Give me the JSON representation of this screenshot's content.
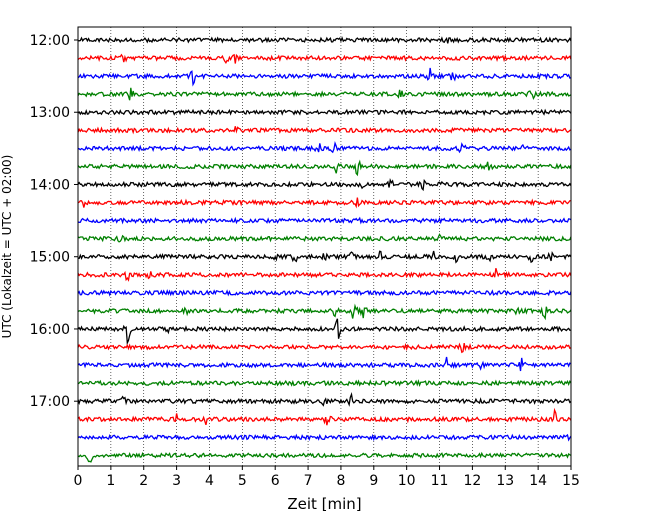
{
  "chart_data": {
    "type": "line",
    "xlabel": "Zeit  [min]",
    "ylabel": "UTC (Lokalzeit = UTC + 02:00)",
    "xlim": [
      0,
      15
    ],
    "x_ticks": [
      "0",
      "1",
      "2",
      "3",
      "4",
      "5",
      "6",
      "7",
      "8",
      "9",
      "10",
      "11",
      "12",
      "13",
      "14",
      "15"
    ],
    "y_ticks": [
      "12:00",
      "13:00",
      "14:00",
      "15:00",
      "16:00",
      "17:00"
    ],
    "grid": {
      "x": true,
      "y": false,
      "style": "dotted"
    },
    "trace_colors": [
      "#000000",
      "#ff0000",
      "#0000ff",
      "#008000"
    ],
    "trace_interval_min": 15,
    "traces": [
      {
        "start": "12:00",
        "events": [
          [
            7.2,
            1.0
          ],
          [
            11.2,
            0.8
          ]
        ]
      },
      {
        "start": "12:15",
        "events": [
          [
            1.4,
            1.8
          ],
          [
            4.5,
            1.5
          ],
          [
            4.8,
            1.2
          ]
        ]
      },
      {
        "start": "12:30",
        "events": [
          [
            3.5,
            2.5
          ],
          [
            10.7,
            2.3
          ],
          [
            11.4,
            1.3
          ]
        ]
      },
      {
        "start": "12:45",
        "events": [
          [
            1.6,
            1.6
          ],
          [
            9.8,
            1.2
          ],
          [
            13.8,
            2.8
          ]
        ]
      },
      {
        "start": "13:00",
        "events": [
          [
            3.0,
            1.0
          ]
        ]
      },
      {
        "start": "13:15",
        "events": [
          [
            4.8,
            0.8
          ]
        ]
      },
      {
        "start": "13:30",
        "events": [
          [
            7.3,
            2.0
          ],
          [
            7.8,
            1.6
          ],
          [
            11.7,
            3.0
          ],
          [
            13.5,
            1.2
          ]
        ]
      },
      {
        "start": "13:45",
        "events": [
          [
            7.9,
            2.8
          ],
          [
            8.5,
            2.5
          ],
          [
            12.5,
            1.3
          ]
        ]
      },
      {
        "start": "14:00",
        "events": [
          [
            8.7,
            1.2
          ],
          [
            9.5,
            1.6
          ],
          [
            10.5,
            1.5
          ],
          [
            11.1,
            1.3
          ]
        ]
      },
      {
        "start": "14:15",
        "events": [
          [
            0.2,
            1.6
          ],
          [
            8.5,
            1.3
          ]
        ]
      },
      {
        "start": "14:30",
        "events": [
          [
            8.6,
            0.7
          ]
        ]
      },
      {
        "start": "14:45",
        "events": [
          [
            1.3,
            0.8
          ],
          [
            11.0,
            1.2
          ]
        ]
      },
      {
        "start": "15:00",
        "events": [
          [
            6.0,
            1.2
          ],
          [
            6.6,
            1.6
          ],
          [
            7.5,
            1.6
          ],
          [
            8.3,
            1.3
          ],
          [
            9.2,
            1.3
          ],
          [
            10.8,
            1.5
          ],
          [
            11.5,
            1.2
          ],
          [
            12.5,
            1.3
          ],
          [
            13.8,
            1.3
          ],
          [
            14.4,
            1.2
          ]
        ]
      },
      {
        "start": "15:15",
        "events": [
          [
            1.5,
            1.6
          ],
          [
            2.2,
            1.2
          ],
          [
            12.7,
            1.7
          ]
        ]
      },
      {
        "start": "15:30",
        "events": []
      },
      {
        "start": "15:45",
        "events": [
          [
            3.3,
            1.0
          ],
          [
            7.8,
            2.6
          ],
          [
            8.4,
            3.2
          ],
          [
            8.7,
            2.5
          ],
          [
            13.4,
            2.5
          ],
          [
            14.2,
            2.2
          ]
        ]
      },
      {
        "start": "16:00",
        "events": [
          [
            1.5,
            4.5
          ],
          [
            2.7,
            1.2
          ],
          [
            7.9,
            3.6
          ]
        ]
      },
      {
        "start": "16:15",
        "events": [
          [
            11.7,
            1.3
          ]
        ]
      },
      {
        "start": "16:30",
        "events": [
          [
            11.2,
            2.2
          ],
          [
            12.3,
            1.3
          ],
          [
            13.5,
            2.0
          ]
        ]
      },
      {
        "start": "16:45",
        "events": [
          [
            6.6,
            1.3
          ]
        ]
      },
      {
        "start": "17:00",
        "events": [
          [
            1.4,
            1.4
          ],
          [
            7.5,
            1.3
          ],
          [
            8.3,
            2.5
          ]
        ]
      },
      {
        "start": "17:15",
        "events": [
          [
            3.0,
            2.3
          ],
          [
            3.9,
            1.5
          ],
          [
            7.6,
            3.2
          ],
          [
            14.5,
            2.5
          ]
        ]
      },
      {
        "start": "17:30",
        "events": [
          [
            14.95,
            1.0
          ]
        ]
      },
      {
        "start": "17:45",
        "events": [
          [
            0.35,
            2.6
          ]
        ]
      }
    ]
  }
}
